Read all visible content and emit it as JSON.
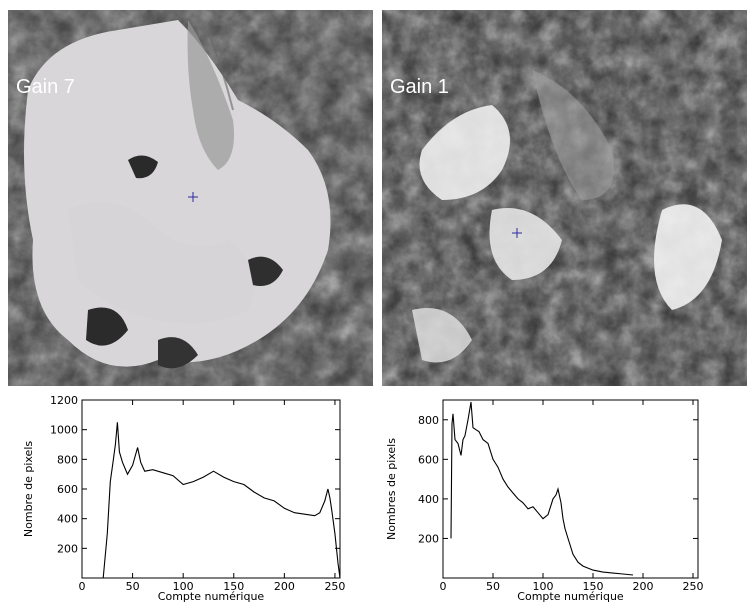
{
  "panels": [
    {
      "label": "Gain 7"
    },
    {
      "label": "Gain 1"
    }
  ],
  "chart_data": [
    {
      "type": "line",
      "title": "",
      "xlabel": "Compte numérique",
      "ylabel": "Nombre de pixels",
      "xlim": [
        0,
        255
      ],
      "ylim": [
        0,
        1200
      ],
      "xticks": [
        0,
        50,
        100,
        150,
        200,
        250
      ],
      "yticks": [
        200,
        400,
        600,
        800,
        1000,
        1200
      ],
      "series": [
        {
          "x": [
            21,
            25,
            28,
            31,
            33,
            35,
            37,
            40,
            45,
            50,
            55,
            58,
            62,
            70,
            80,
            90,
            100,
            110,
            120,
            130,
            140,
            150,
            160,
            170,
            180,
            190,
            200,
            210,
            220,
            230,
            235,
            240,
            243,
            245,
            247,
            250,
            253,
            255
          ],
          "y": [
            0,
            300,
            650,
            800,
            900,
            1050,
            850,
            780,
            700,
            760,
            880,
            780,
            720,
            730,
            710,
            690,
            630,
            650,
            680,
            720,
            680,
            650,
            630,
            580,
            540,
            520,
            470,
            440,
            430,
            420,
            440,
            520,
            600,
            540,
            450,
            300,
            100,
            0
          ]
        }
      ]
    },
    {
      "type": "line",
      "title": "",
      "xlabel": "Compte numérique",
      "ylabel": "Nombres de pixels",
      "xlim": [
        0,
        255
      ],
      "ylim": [
        0,
        900
      ],
      "xticks": [
        0,
        50,
        100,
        150,
        200,
        250
      ],
      "yticks": [
        200,
        400,
        600,
        800
      ],
      "series": [
        {
          "x": [
            8,
            9,
            10,
            12,
            15,
            18,
            20,
            22,
            25,
            28,
            30,
            33,
            36,
            40,
            45,
            50,
            55,
            60,
            65,
            70,
            75,
            80,
            85,
            90,
            95,
            100,
            105,
            110,
            113,
            115,
            118,
            120,
            122,
            125,
            130,
            135,
            140,
            150,
            160,
            170,
            180,
            190
          ],
          "y": [
            200,
            780,
            830,
            700,
            680,
            620,
            700,
            720,
            800,
            890,
            760,
            750,
            740,
            700,
            680,
            600,
            560,
            500,
            460,
            430,
            400,
            380,
            350,
            360,
            330,
            300,
            320,
            400,
            420,
            450,
            380,
            300,
            250,
            200,
            120,
            80,
            60,
            40,
            30,
            25,
            20,
            15
          ]
        }
      ]
    }
  ]
}
